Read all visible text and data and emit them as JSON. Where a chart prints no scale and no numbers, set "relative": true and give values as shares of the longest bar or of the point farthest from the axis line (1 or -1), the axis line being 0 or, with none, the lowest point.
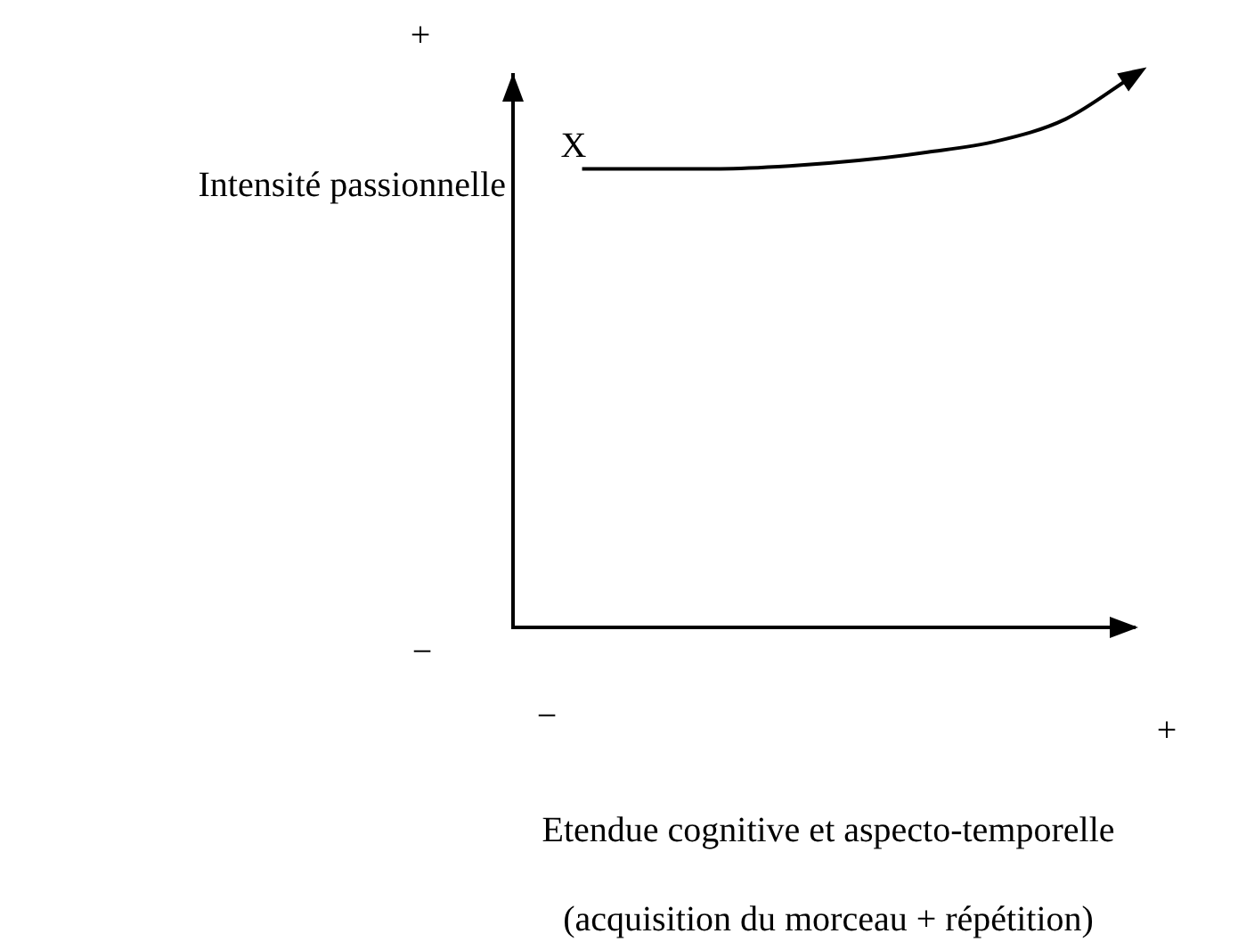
{
  "chart_data": {
    "type": "line",
    "relative": true,
    "categories": [
      null,
      null,
      null,
      null,
      null,
      null,
      null,
      null,
      null,
      null
    ],
    "values": [
      null,
      0.83,
      0.83,
      0.83,
      0.835,
      0.845,
      0.86,
      0.88,
      0.92,
      1
    ],
    "color": "#000000",
    "marker": "none",
    "tick_labels": false,
    "ylabel": "Intensité passionnelle",
    "xlabel": "Etendue cognitive et aspecto-temporelle (acquisition du morceau + répétition)",
    "annotations": [
      "X",
      "+",
      "−",
      "−",
      "+"
    ]
  }
}
